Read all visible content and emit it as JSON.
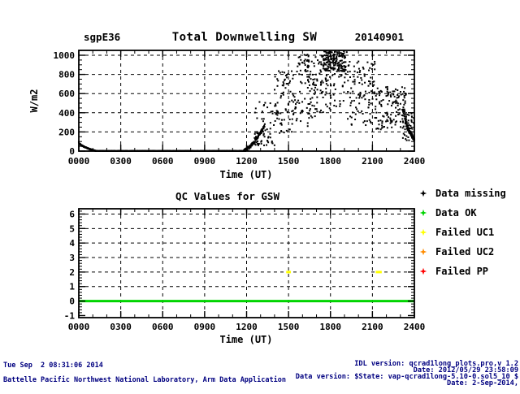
{
  "header": {
    "site": "sgpE36",
    "title": "Total Downwelling SW",
    "date": "20140901"
  },
  "legend": {
    "items": [
      {
        "label": "Data missing",
        "color": "#000000",
        "icon": "black-star-icon"
      },
      {
        "label": "Data OK",
        "color": "#00d400",
        "icon": "green-star-icon"
      },
      {
        "label": "Failed UC1",
        "color": "#ffff00",
        "icon": "yellow-star-icon"
      },
      {
        "label": "Failed UC2",
        "color": "#ff8c00",
        "icon": "orange-star-icon"
      },
      {
        "label": "Failed PP",
        "color": "#ff0000",
        "icon": "red-star-icon"
      }
    ]
  },
  "footer": {
    "left_lines": [
      "Tue Sep  2 08:31:06 2014",
      "Battelle Pacific Northwest National Laboratory, Arm Data Application"
    ],
    "right_lines": [
      "IDL version: qcrad1long_plots.pro,v 1.2",
      "Date: 2012/05/29 23:58:09",
      "Data version: $State: vap-qcrad1long-5.10-0.sol5_10 $",
      "Date: 2-Sep-2014,"
    ]
  },
  "chart_data": [
    {
      "type": "scatter",
      "title": "Total Downwelling SW",
      "site": "sgpE36",
      "date_label": "20140901",
      "xlabel": "Time (UT)",
      "ylabel": "W/m2",
      "xlim": [
        0,
        24
      ],
      "ylim": [
        0,
        1050
      ],
      "grid": "dashed",
      "marker": "black 2px square",
      "seed": 20140901,
      "xticks": [
        {
          "v": 0,
          "label": "0000"
        },
        {
          "v": 3,
          "label": "0300"
        },
        {
          "v": 6,
          "label": "0600"
        },
        {
          "v": 9,
          "label": "0900"
        },
        {
          "v": 12,
          "label": "1200"
        },
        {
          "v": 15,
          "label": "1500"
        },
        {
          "v": 18,
          "label": "1800"
        },
        {
          "v": 21,
          "label": "2100"
        },
        {
          "v": 24,
          "label": "2400"
        }
      ],
      "yticks": [
        0,
        200,
        400,
        600,
        800,
        1000
      ],
      "grid_x_hours": [
        3,
        6,
        9,
        12,
        15,
        18,
        21
      ],
      "grid_y_values": [
        200,
        400,
        600,
        800,
        1000
      ],
      "bands": [
        {
          "name": "sunset-decay",
          "t0": 0.0,
          "t1": 1.25,
          "v0": 95,
          "v1": 0,
          "curve": 0.55,
          "n": 110,
          "jitter": 4
        },
        {
          "name": "night-zero",
          "t0": 1.25,
          "t1": 11.8,
          "v0": 2,
          "v1": 2,
          "curve": 1,
          "n": 330,
          "jitter": 1.5
        },
        {
          "name": "morning-rise",
          "t0": 11.75,
          "t1": 13.3,
          "v0": 2,
          "v1": 265,
          "curve": 1.5,
          "n": 95,
          "jitter": 18
        },
        {
          "name": "evening-fall",
          "t0": 23.35,
          "t1": 24.0,
          "v0": 290,
          "v1": 115,
          "curve": 1,
          "n": 60,
          "jitter": 22
        }
      ],
      "segments": [
        {
          "t0": 12.55,
          "t1": 14.0,
          "vmin": 60,
          "vmax": 520,
          "n": 60,
          "bias": 0.45
        },
        {
          "t0": 14.0,
          "t1": 15.6,
          "vmin": 170,
          "vmax": 840,
          "n": 85,
          "bias": 0.52
        },
        {
          "t0": 15.6,
          "t1": 17.4,
          "vmin": 250,
          "vmax": 1010,
          "n": 120,
          "bias": 0.58
        },
        {
          "t0": 17.3,
          "t1": 19.2,
          "vmin": 380,
          "vmax": 1048,
          "n": 95,
          "bias": 0.6
        },
        {
          "t0": 17.45,
          "t1": 19.1,
          "vmin": 830,
          "vmax": 1048,
          "n": 135,
          "bias": 0.5
        },
        {
          "t0": 19.2,
          "t1": 21.2,
          "vmin": 270,
          "vmax": 950,
          "n": 105,
          "bias": 0.5
        },
        {
          "t0": 21.2,
          "t1": 23.4,
          "vmin": 225,
          "vmax": 670,
          "n": 130,
          "bias": 0.5
        },
        {
          "t0": 23.1,
          "t1": 24.0,
          "vmin": 110,
          "vmax": 430,
          "n": 50,
          "bias": 0.45
        }
      ]
    },
    {
      "type": "scatter",
      "title": "QC Values for GSW",
      "xlabel": "Time (UT)",
      "ylabel": "",
      "xlim": [
        0,
        24
      ],
      "ylim": [
        -1.15,
        6.35
      ],
      "grid": "dashed",
      "yticks": [
        -1,
        0,
        1,
        2,
        3,
        4,
        5,
        6
      ],
      "grid_x_hours": [
        3,
        6,
        9,
        12,
        15,
        18,
        21
      ],
      "grid_y_values": [
        0,
        1,
        2,
        3,
        4,
        5,
        6
      ],
      "series": [
        {
          "name": "Data OK",
          "color": "#00d400",
          "style": "line",
          "y": 0,
          "x_range": [
            0,
            24
          ]
        },
        {
          "name": "Failed UC1",
          "color": "#ffff00",
          "style": "points",
          "y": 2,
          "x": [
            14.95,
            15.05,
            21.35,
            21.55
          ]
        }
      ]
    }
  ]
}
